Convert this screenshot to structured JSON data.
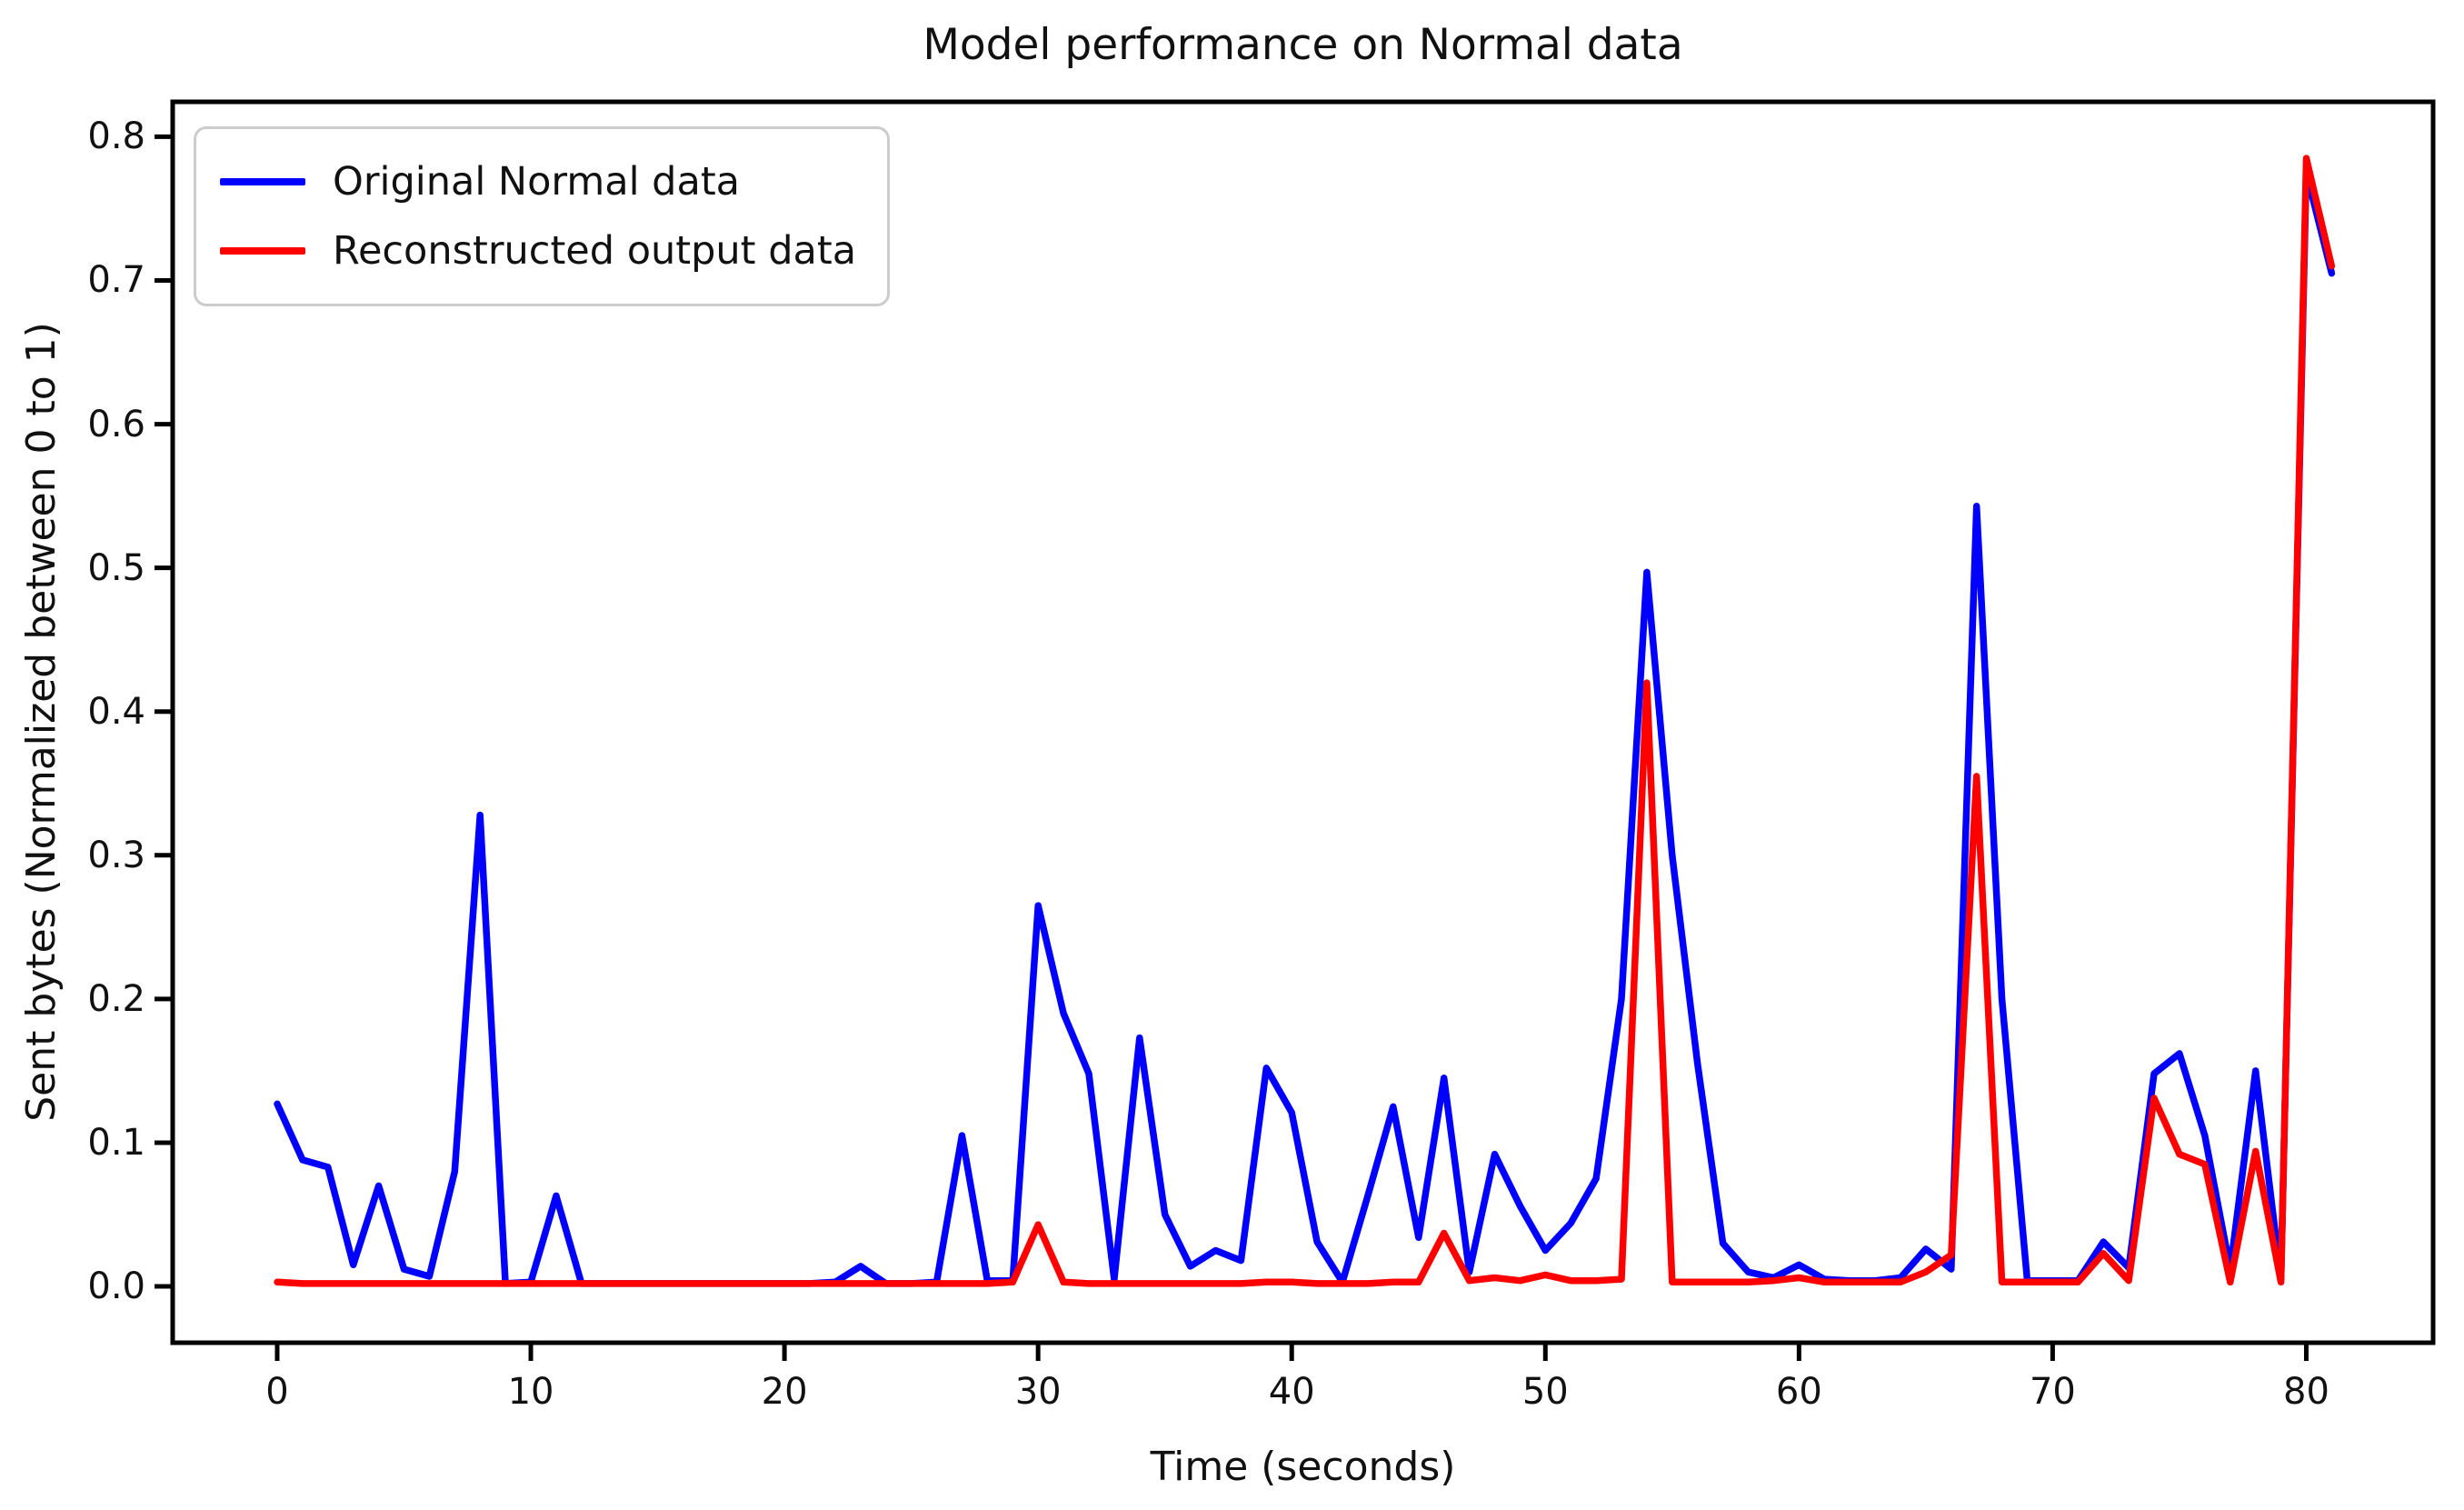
{
  "figure": {
    "title": "Model performance on Normal data",
    "xlabel": "Time (seconds)",
    "ylabel": "Sent bytes (Normalized between 0 to 1)"
  },
  "legend": {
    "position": "upper left",
    "items": [
      {
        "label": "Original Normal data",
        "color": "#0000ff"
      },
      {
        "label": "Reconstructed output data",
        "color": "#ff0000"
      }
    ]
  },
  "axes": {
    "x_tick_labels": [
      "0",
      "10",
      "20",
      "30",
      "40",
      "50",
      "60",
      "70",
      "80"
    ],
    "x_tick_values": [
      0,
      10,
      20,
      30,
      40,
      50,
      60,
      70,
      80
    ],
    "y_tick_labels": [
      "0.0",
      "0.1",
      "0.2",
      "0.3",
      "0.4",
      "0.5",
      "0.6",
      "0.7",
      "0.8"
    ],
    "y_tick_values": [
      0.0,
      0.1,
      0.2,
      0.3,
      0.4,
      0.5,
      0.6,
      0.7,
      0.8
    ],
    "spine_color": "#000000",
    "background": "#ffffff"
  },
  "chart_data": {
    "type": "line",
    "title": "Model performance on Normal data",
    "xlabel": "Time (seconds)",
    "ylabel": "Sent bytes (Normalized between 0 to 1)",
    "xlim": [
      -4.12,
      85.0
    ],
    "ylim": [
      -0.0392,
      0.8243
    ],
    "grid": false,
    "legend_position": "upper left",
    "x": [
      0,
      1,
      2,
      3,
      4,
      5,
      6,
      7,
      8,
      9,
      10,
      11,
      12,
      13,
      14,
      15,
      16,
      17,
      18,
      19,
      20,
      21,
      22,
      23,
      24,
      25,
      26,
      27,
      28,
      29,
      30,
      31,
      32,
      33,
      34,
      35,
      36,
      37,
      38,
      39,
      40,
      41,
      42,
      43,
      44,
      45,
      46,
      47,
      48,
      49,
      50,
      51,
      52,
      53,
      54,
      55,
      56,
      57,
      58,
      59,
      60,
      61,
      62,
      63,
      64,
      65,
      66,
      67,
      68,
      69,
      70,
      71,
      72,
      73,
      74,
      75,
      76,
      77,
      78,
      79,
      80,
      81
    ],
    "series": [
      {
        "name": "Original Normal data",
        "color": "#0000ff",
        "values": [
          0.127,
          0.088,
          0.083,
          0.015,
          0.07,
          0.012,
          0.007,
          0.08,
          0.328,
          0.002,
          0.003,
          0.063,
          0.002,
          0.002,
          0.002,
          0.002,
          0.002,
          0.002,
          0.002,
          0.002,
          0.002,
          0.002,
          0.003,
          0.014,
          0.002,
          0.002,
          0.003,
          0.105,
          0.004,
          0.004,
          0.265,
          0.19,
          0.148,
          0.005,
          0.173,
          0.05,
          0.014,
          0.025,
          0.018,
          0.152,
          0.121,
          0.031,
          0.003,
          0.063,
          0.125,
          0.034,
          0.145,
          0.01,
          0.092,
          0.056,
          0.025,
          0.044,
          0.075,
          0.2,
          0.497,
          0.3,
          0.155,
          0.03,
          0.01,
          0.006,
          0.015,
          0.005,
          0.004,
          0.004,
          0.006,
          0.026,
          0.012,
          0.543,
          0.2,
          0.004,
          0.004,
          0.004,
          0.031,
          0.013,
          0.148,
          0.162,
          0.105,
          0.012,
          0.15,
          0.005,
          0.775,
          0.705
        ]
      },
      {
        "name": "Reconstructed output data",
        "color": "#ff0000",
        "values": [
          0.003,
          0.002,
          0.002,
          0.002,
          0.002,
          0.002,
          0.002,
          0.002,
          0.002,
          0.002,
          0.002,
          0.002,
          0.002,
          0.002,
          0.002,
          0.002,
          0.002,
          0.002,
          0.002,
          0.002,
          0.002,
          0.002,
          0.002,
          0.002,
          0.002,
          0.002,
          0.002,
          0.002,
          0.002,
          0.003,
          0.043,
          0.003,
          0.002,
          0.002,
          0.002,
          0.002,
          0.002,
          0.002,
          0.002,
          0.003,
          0.003,
          0.002,
          0.002,
          0.002,
          0.003,
          0.003,
          0.037,
          0.004,
          0.006,
          0.004,
          0.008,
          0.004,
          0.004,
          0.005,
          0.42,
          0.003,
          0.003,
          0.003,
          0.003,
          0.004,
          0.006,
          0.003,
          0.003,
          0.003,
          0.003,
          0.01,
          0.022,
          0.355,
          0.003,
          0.003,
          0.003,
          0.003,
          0.023,
          0.004,
          0.131,
          0.092,
          0.085,
          0.003,
          0.094,
          0.003,
          0.785,
          0.71
        ]
      }
    ]
  }
}
